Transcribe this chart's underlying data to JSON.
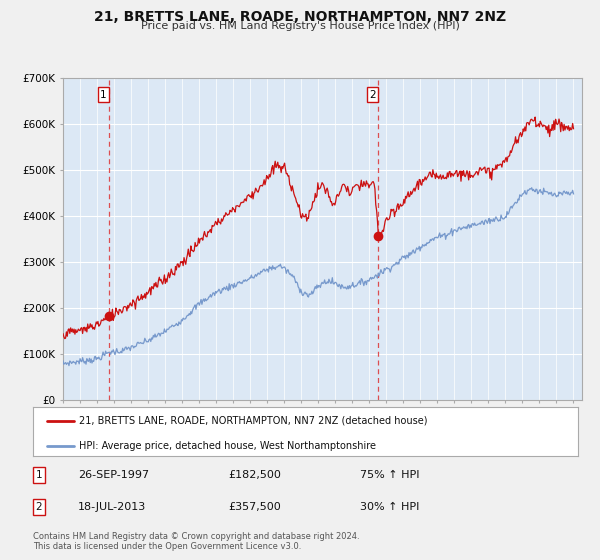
{
  "title": "21, BRETTS LANE, ROADE, NORTHAMPTON, NN7 2NZ",
  "subtitle": "Price paid vs. HM Land Registry's House Price Index (HPI)",
  "fig_bg_color": "#f0f0f0",
  "plot_bg_color": "#dce8f5",
  "outer_bg_color": "#f0f0f0",
  "red_line_color": "#cc1111",
  "blue_line_color": "#7799cc",
  "marker_color": "#cc1111",
  "vline_color": "#dd3333",
  "grid_color": "#ffffff",
  "legend_label_red": "21, BRETTS LANE, ROADE, NORTHAMPTON, NN7 2NZ (detached house)",
  "legend_label_blue": "HPI: Average price, detached house, West Northamptonshire",
  "sale1_date": "26-SEP-1997",
  "sale1_price": "£182,500",
  "sale1_pct": "75% ↑ HPI",
  "sale1_year": 1997.73,
  "sale1_value": 182500,
  "sale2_date": "18-JUL-2013",
  "sale2_price": "£357,500",
  "sale2_pct": "30% ↑ HPI",
  "sale2_year": 2013.54,
  "sale2_value": 357500,
  "footer": "Contains HM Land Registry data © Crown copyright and database right 2024.\nThis data is licensed under the Open Government Licence v3.0.",
  "ylim": [
    0,
    700000
  ],
  "yticks": [
    0,
    100000,
    200000,
    300000,
    400000,
    500000,
    600000,
    700000
  ],
  "ytick_labels": [
    "£0",
    "£100K",
    "£200K",
    "£300K",
    "£400K",
    "£500K",
    "£600K",
    "£700K"
  ],
  "xmin": 1995.0,
  "xmax": 2025.5
}
